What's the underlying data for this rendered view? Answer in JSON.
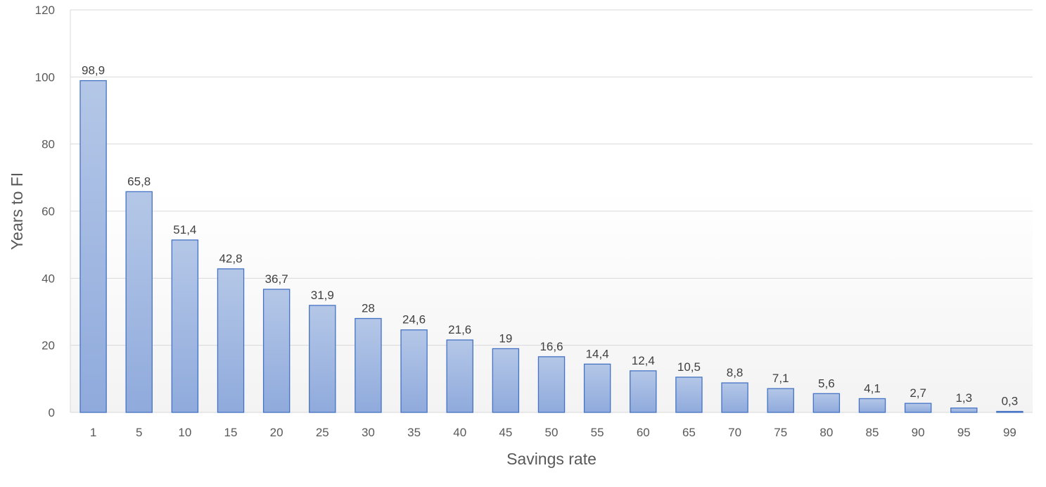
{
  "chart_data": {
    "type": "bar",
    "title": "",
    "xlabel": "Savings rate",
    "ylabel": "Years to FI",
    "categories": [
      "1",
      "5",
      "10",
      "15",
      "20",
      "25",
      "30",
      "35",
      "40",
      "45",
      "50",
      "55",
      "60",
      "65",
      "70",
      "75",
      "80",
      "85",
      "90",
      "95",
      "99"
    ],
    "series": [
      {
        "values": [
          98.9,
          65.8,
          51.4,
          42.8,
          36.7,
          31.9,
          28,
          24.6,
          21.6,
          19,
          16.6,
          14.4,
          12.4,
          10.5,
          8.8,
          7.1,
          5.6,
          4.1,
          2.7,
          1.3,
          0.3
        ],
        "labels": [
          "98,9",
          "65,8",
          "51,4",
          "42,8",
          "36,7",
          "31,9",
          "28",
          "24,6",
          "21,6",
          "19",
          "16,6",
          "14,4",
          "12,4",
          "10,5",
          "8,8",
          "7,1",
          "5,6",
          "4,1",
          "2,7",
          "1,3",
          "0,3"
        ]
      }
    ],
    "yticks": [
      "0",
      "20",
      "40",
      "60",
      "80",
      "100",
      "120"
    ],
    "ylim": [
      0,
      120
    ],
    "grid": true,
    "legend": "none",
    "colors": {
      "bar_top": "#b4c7e7",
      "bar_bottom": "#8faadc",
      "bar_edge": "#4472c4",
      "grid": "#d9d9d9"
    }
  }
}
